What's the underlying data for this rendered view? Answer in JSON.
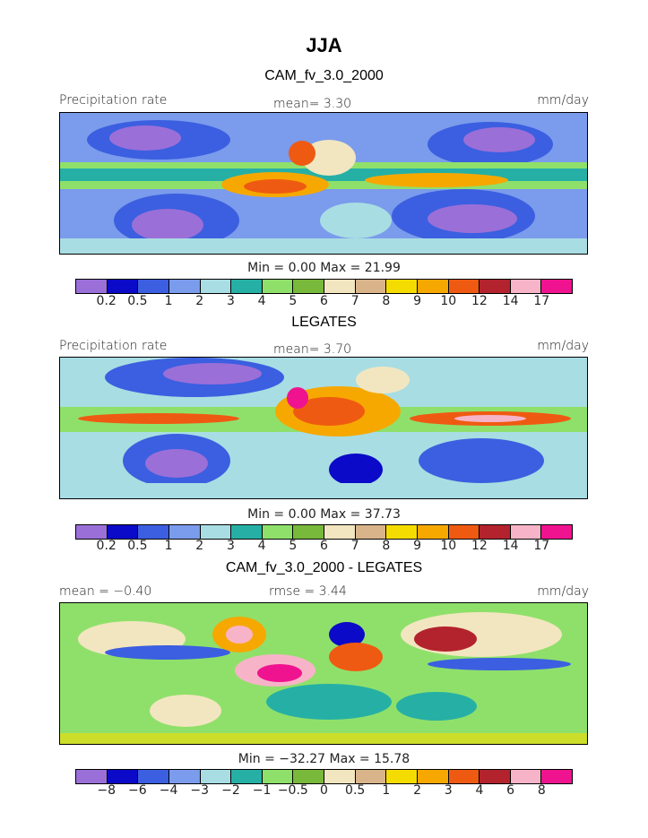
{
  "title": "JJA",
  "colors": {
    "scale": [
      "#9b6fd8",
      "#0a0ac8",
      "#3b5fe0",
      "#7b9bec",
      "#a8dde3",
      "#26b0a5",
      "#8fe06a",
      "#78b83a",
      "#f2e6c0",
      "#d9b48a",
      "#f5dc00",
      "#f6a800",
      "#ef5a12",
      "#b3232d",
      "#f7b4c8",
      "#f0138f"
    ]
  },
  "panels": [
    {
      "title": "CAM_fv_3.0_2000",
      "left_label": "Precipitation rate",
      "center_label": "mean=   3.30",
      "right_label": "mm/day",
      "stats": "Min =   0.00 Max =  21.99",
      "ticks": [
        "0.2",
        "0.5",
        "1",
        "2",
        "3",
        "4",
        "5",
        "6",
        "7",
        "8",
        "9",
        "10",
        "12",
        "14",
        "17"
      ]
    },
    {
      "title": "LEGATES",
      "left_label": "Precipitation rate",
      "center_label": "mean=   3.70",
      "right_label": "mm/day",
      "stats": "Min =   0.00 Max =  37.73",
      "ticks": [
        "0.2",
        "0.5",
        "1",
        "2",
        "3",
        "4",
        "5",
        "6",
        "7",
        "8",
        "9",
        "10",
        "12",
        "14",
        "17"
      ]
    },
    {
      "title": "CAM_fv_3.0_2000 - LEGATES",
      "left_label": "mean =  −0.40",
      "center_label": "rmse =   3.44",
      "right_label": "mm/day",
      "stats": "Min = −32.27 Max =  15.78",
      "ticks": [
        "−8",
        "−6",
        "−4",
        "−3",
        "−2",
        "−1",
        "−0.5",
        "0",
        "0.5",
        "1",
        "2",
        "3",
        "4",
        "6",
        "8"
      ]
    }
  ]
}
